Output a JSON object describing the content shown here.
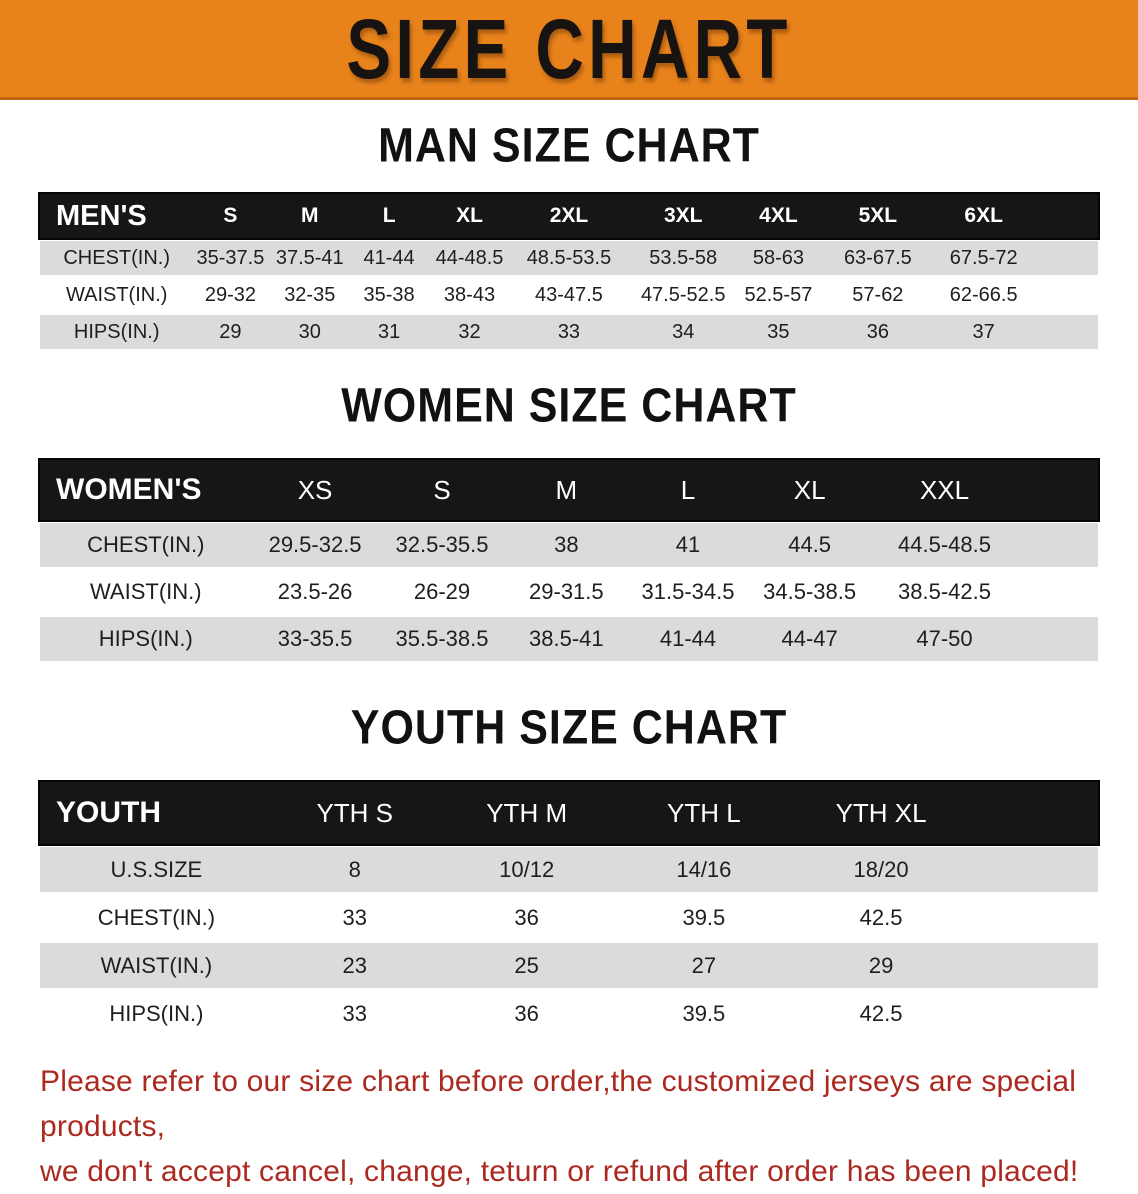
{
  "banner": {
    "title": "SIZE CHART"
  },
  "colors": {
    "banner_orange": "#E8821B",
    "header_black": "#161616",
    "stripe_gray": "#DBDBDB",
    "footer_red": "#AC2920"
  },
  "sections": [
    {
      "heading": "MAN SIZE CHART",
      "table": {
        "header_label": "MEN'S",
        "columns": [
          "S",
          "M",
          "L",
          "XL",
          "2XL",
          "3XL",
          "4XL",
          "5XL",
          "6XL"
        ],
        "rows": [
          {
            "label": "CHEST(IN.)",
            "values": [
              "35-37.5",
              "37.5-41",
              "41-44",
              "44-48.5",
              "48.5-53.5",
              "53.5-58",
              "58-63",
              "63-67.5",
              "67.5-72"
            ]
          },
          {
            "label": "WAIST(IN.)",
            "values": [
              "29-32",
              "32-35",
              "35-38",
              "38-43",
              "43-47.5",
              "47.5-52.5",
              "52.5-57",
              "57-62",
              "62-66.5"
            ]
          },
          {
            "label": "HIPS(IN.)",
            "values": [
              "29",
              "30",
              "31",
              "32",
              "33",
              "34",
              "35",
              "36",
              "37"
            ]
          }
        ]
      }
    },
    {
      "heading": "WOMEN SIZE CHART",
      "table": {
        "header_label": "WOMEN'S",
        "columns": [
          "XS",
          "S",
          "M",
          "L",
          "XL",
          "XXL"
        ],
        "rows": [
          {
            "label": "CHEST(IN.)",
            "values": [
              "29.5-32.5",
              "32.5-35.5",
              "38",
              "41",
              "44.5",
              "44.5-48.5"
            ]
          },
          {
            "label": "WAIST(IN.)",
            "values": [
              "23.5-26",
              "26-29",
              "29-31.5",
              "31.5-34.5",
              "34.5-38.5",
              "38.5-42.5"
            ]
          },
          {
            "label": "HIPS(IN.)",
            "values": [
              "33-35.5",
              "35.5-38.5",
              "38.5-41",
              "41-44",
              "44-47",
              "47-50"
            ]
          }
        ]
      }
    },
    {
      "heading": "YOUTH SIZE CHART",
      "table": {
        "header_label": "YOUTH",
        "columns": [
          "YTH S",
          "YTH M",
          "YTH L",
          "YTH XL"
        ],
        "rows": [
          {
            "label": "U.S.SIZE",
            "values": [
              "8",
              "10/12",
              "14/16",
              "18/20"
            ]
          },
          {
            "label": "CHEST(IN.)",
            "values": [
              "33",
              "36",
              "39.5",
              "42.5"
            ]
          },
          {
            "label": "WAIST(IN.)",
            "values": [
              "23",
              "25",
              "27",
              "29"
            ]
          },
          {
            "label": "HIPS(IN.)",
            "values": [
              "33",
              "36",
              "39.5",
              "42.5"
            ]
          }
        ]
      }
    }
  ],
  "footer": {
    "line1": "Please refer to our size chart before order,the customized jerseys are special products,",
    "line2": "we don't accept cancel, change, teturn or refund after order has been placed!"
  }
}
